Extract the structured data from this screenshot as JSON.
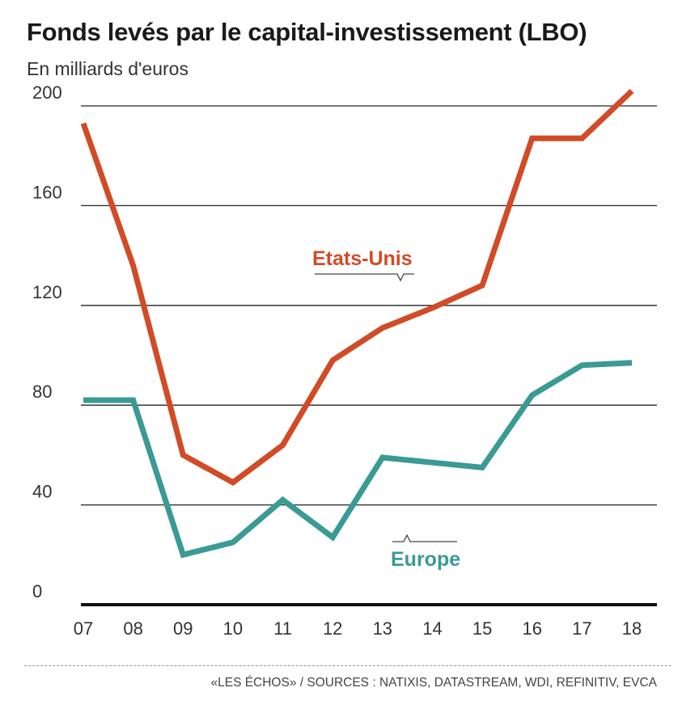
{
  "chart_data": {
    "type": "line",
    "title": "Fonds levés par le capital-investissement (LBO)",
    "subtitle": "En milliards d'euros",
    "x": [
      "07",
      "08",
      "09",
      "10",
      "11",
      "12",
      "13",
      "14",
      "15",
      "16",
      "17",
      "18"
    ],
    "ylim": [
      0,
      210
    ],
    "yticks": [
      0,
      40,
      80,
      120,
      160,
      200
    ],
    "grid": true,
    "series": [
      {
        "name": "Etats-Unis",
        "color": "#d14b27",
        "values": [
          193,
          136,
          60,
          49,
          64,
          98,
          111,
          119,
          128,
          187,
          187,
          206
        ]
      },
      {
        "name": "Europe",
        "color": "#3a9a94",
        "values": [
          82,
          82,
          20,
          25,
          42,
          27,
          59,
          57,
          55,
          84,
          96,
          97
        ]
      }
    ]
  },
  "source": "«LES ÉCHOS» / SOURCES : NATIXIS, DATASTREAM, WDI, REFINITIV, EVCA"
}
